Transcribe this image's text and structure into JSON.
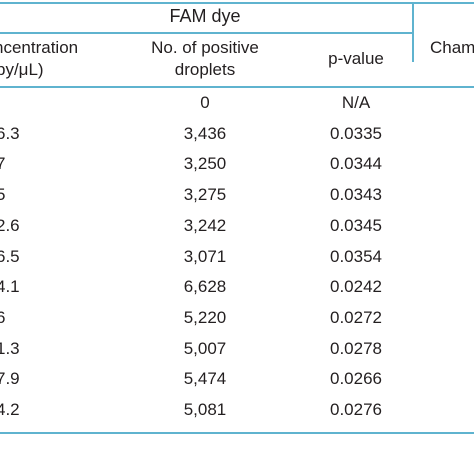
{
  "colors": {
    "rule": "#5fb3cf",
    "text": "#231f20",
    "background": "#ffffff"
  },
  "header": {
    "group_title": "FAM dye",
    "col_concentration_line1": "ncentration",
    "col_concentration_line2": "py/μL)",
    "col_positive_line1": "No. of positive",
    "col_positive_line2": "droplets",
    "col_pvalue": "p-value",
    "col_next_partial": "Cham"
  },
  "rows": [
    {
      "conc": "",
      "positive": "0",
      "pvalue": "N/A"
    },
    {
      "conc": "6.3",
      "positive": "3,436",
      "pvalue": "0.0335"
    },
    {
      "conc": "7",
      "positive": "3,250",
      "pvalue": "0.0344"
    },
    {
      "conc": "5",
      "positive": "3,275",
      "pvalue": "0.0343"
    },
    {
      "conc": "2.6",
      "positive": "3,242",
      "pvalue": "0.0345"
    },
    {
      "conc": "6.5",
      "positive": "3,071",
      "pvalue": "0.0354"
    },
    {
      "conc": "4.1",
      "positive": "6,628",
      "pvalue": "0.0242"
    },
    {
      "conc": "6",
      "positive": "5,220",
      "pvalue": "0.0272"
    },
    {
      "conc": "1.3",
      "positive": "5,007",
      "pvalue": "0.0278"
    },
    {
      "conc": "7.9",
      "positive": "5,474",
      "pvalue": "0.0266"
    },
    {
      "conc": "4.2",
      "positive": "5,081",
      "pvalue": "0.0276"
    }
  ]
}
